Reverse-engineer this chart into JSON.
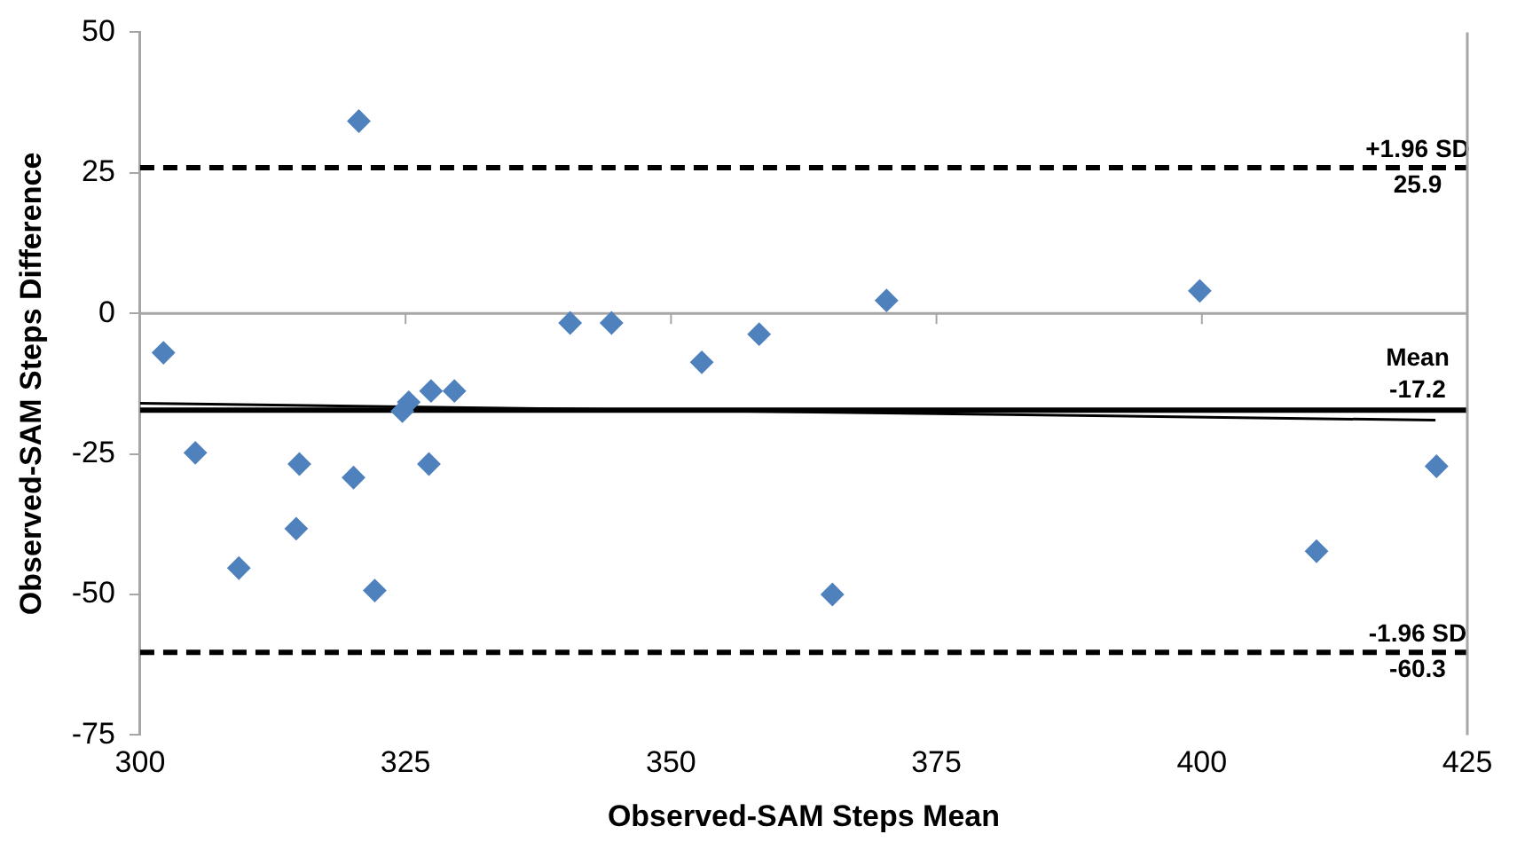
{
  "chart_data": {
    "type": "scatter",
    "xlabel": "Observed-SAM Steps Mean",
    "ylabel": "Observed-SAM Steps Difference",
    "grid": false,
    "legend": false,
    "series": [
      {
        "type": "scatter",
        "marker": "diamond",
        "color": "#4f81bd",
        "x": [
          302.2,
          305.2,
          309.3,
          314.7,
          315,
          320.1,
          320.6,
          322.1,
          324.7,
          325.3,
          327.2,
          327.4,
          329.6,
          340.5,
          344.4,
          352.9,
          358.3,
          365.2,
          370.3,
          399.8,
          410.8,
          422.1
        ],
        "values": [
          -7,
          -24.8,
          -45.3,
          -38.3,
          -26.8,
          -29.2,
          34.2,
          -49.3,
          -17.4,
          -15.8,
          -26.8,
          -13.8,
          -13.8,
          -1.7,
          -1.7,
          -8.7,
          -3.7,
          -50,
          2.3,
          4,
          -42.3,
          -27.2
        ]
      },
      {
        "type": "line",
        "color": "#000000",
        "x": [
          300,
          422
        ],
        "values": [
          -16,
          -19
        ]
      }
    ],
    "xlim": [
      300,
      425
    ],
    "xticks": [
      300,
      325,
      350,
      375,
      400,
      425
    ],
    "ylim": [
      -75,
      50
    ],
    "yticks": [
      -75,
      -50,
      -25,
      0,
      25,
      50
    ],
    "ref_lines": [
      {
        "axis": "y",
        "value": 0,
        "color": "#a6a6a6",
        "line_style": "solid"
      },
      {
        "axis": "y",
        "value": 25.9,
        "label": "+1.96 SD\n25.9",
        "color": "#000000",
        "line_style": "dashed"
      },
      {
        "axis": "y",
        "value": -17.2,
        "label": "Mean\n-17.2",
        "color": "#000000",
        "line_style": "solid"
      },
      {
        "axis": "y",
        "value": -60.3,
        "label": "-1.96 SD\n-60.3",
        "color": "#000000",
        "line_style": "dashed"
      }
    ]
  }
}
